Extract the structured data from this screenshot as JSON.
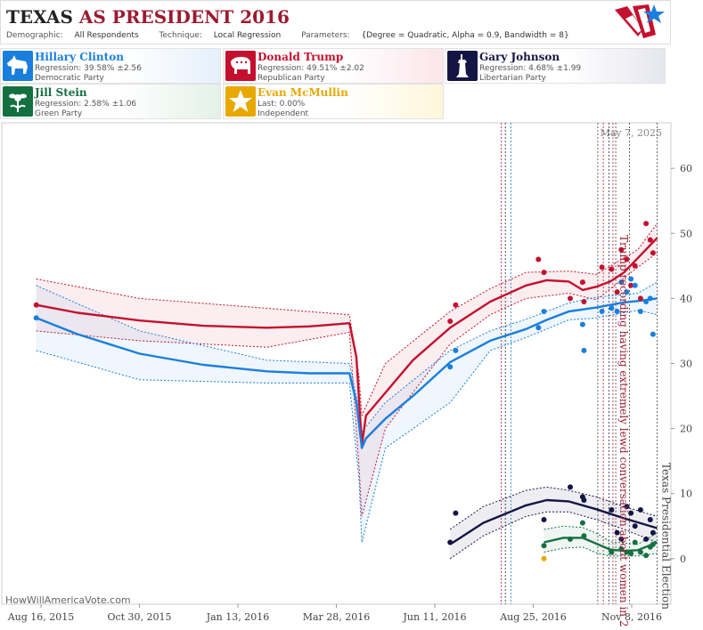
{
  "header": {
    "title": "TEXAS",
    "title_sub": "AS PRESIDENT 2016",
    "demographic_label": "Demographic:",
    "demographic_value": "All Respondents",
    "technique_label": "Technique:",
    "technique_value": "Local Regression",
    "parameters_label": "Parameters:",
    "parameters_value": "{Degree = Quadratic, Alpha = 0.9, Bandwidth = 8}"
  },
  "candidates": [
    {
      "name": "Hillary Clinton",
      "line1": "Regression: 39.58% ±2.56",
      "line2": "Democratic Party",
      "color": "#1a7fdc",
      "bg": "#e6f0fb",
      "icon": "donkey-icon"
    },
    {
      "name": "Donald Trump",
      "line1": "Regression: 49.51% ±2.02",
      "line2": "Republican Party",
      "color": "#c4102e",
      "bg": "#fbe5ea",
      "icon": "elephant-icon"
    },
    {
      "name": "Gary Johnson",
      "line1": "Regression: 4.68% ±1.99",
      "line2": "Libertarian Party",
      "color": "#151545",
      "bg": "#e6e6ef",
      "icon": "statue-of-liberty-icon"
    },
    {
      "name": "Jill Stein",
      "line1": "Regression: 2.58% ±1.06",
      "line2": "Green Party",
      "color": "#157040",
      "bg": "#e4f1e8",
      "icon": "flower-icon"
    },
    {
      "name": "Evan McMullin",
      "line1": "Last: 0.00%",
      "line2": "Independent",
      "color": "#e8a800",
      "bg": "#fff6da",
      "icon": "star-icon"
    }
  ],
  "credit": "HowWillAmericaVote.com",
  "chart_data": {
    "type": "line",
    "date_stamp": "May 7, 2025",
    "x_tick_labels": [
      "Aug 16, 2015",
      "Oct 30, 2015",
      "Jan 13, 2016",
      "Mar 28, 2016",
      "Jun 11, 2016",
      "Aug 25, 2016",
      "Nov 8, 2016"
    ],
    "y_ticks": [
      0,
      10,
      20,
      30,
      40,
      50,
      60
    ],
    "xlim": [
      "2015-07-22",
      "2016-11-18"
    ],
    "ylim": [
      -7,
      67
    ],
    "annotations": [
      {
        "text": "Trump recording having extremely lewd conversation about women in 2005",
        "date": "2016-10-07",
        "color": "#9b1b30"
      },
      {
        "text": "Texas Presidential Election",
        "date": "2016-11-08",
        "color": "#444444"
      }
    ],
    "event_lines": [
      {
        "date": "2016-07-18",
        "color": "#c4102e"
      },
      {
        "date": "2016-07-21",
        "color": "#1a1a50"
      },
      {
        "date": "2016-07-25",
        "color": "#1a7fdc"
      },
      {
        "date": "2016-09-26",
        "color": "#444444"
      },
      {
        "date": "2016-09-30",
        "color": "#c4102e"
      },
      {
        "date": "2016-10-04",
        "color": "#1a1a50"
      },
      {
        "date": "2016-10-07",
        "color": "#c4102e"
      },
      {
        "date": "2016-10-09",
        "color": "#444444"
      },
      {
        "date": "2016-10-19",
        "color": "#444444"
      },
      {
        "date": "2016-11-08",
        "color": "#444444"
      }
    ],
    "series": [
      {
        "name": "Donald Trump",
        "color": "#c4102e",
        "line": [
          [
            "2015-08-16",
            39
          ],
          [
            "2015-09-15",
            37.8
          ],
          [
            "2015-10-30",
            36.6
          ],
          [
            "2015-12-15",
            35.8
          ],
          [
            "2016-01-30",
            35.5
          ],
          [
            "2016-03-01",
            35.7
          ],
          [
            "2016-03-30",
            36.2
          ],
          [
            "2016-04-04",
            31
          ],
          [
            "2016-04-08",
            17.5
          ],
          [
            "2016-04-11",
            22
          ],
          [
            "2016-04-25",
            25.5
          ],
          [
            "2016-05-15",
            30.5
          ],
          [
            "2016-06-11",
            35.5
          ],
          [
            "2016-07-10",
            39.5
          ],
          [
            "2016-08-05",
            42
          ],
          [
            "2016-08-20",
            42.8
          ],
          [
            "2016-09-05",
            42.6
          ],
          [
            "2016-09-15",
            41.3
          ],
          [
            "2016-09-25",
            41.8
          ],
          [
            "2016-10-05",
            42.6
          ],
          [
            "2016-10-15",
            44
          ],
          [
            "2016-10-25",
            46.2
          ],
          [
            "2016-11-08",
            49.3
          ]
        ],
        "upper": [
          [
            "2015-08-16",
            43
          ],
          [
            "2015-10-30",
            40
          ],
          [
            "2016-01-30",
            38.5
          ],
          [
            "2016-03-30",
            37.5
          ],
          [
            "2016-04-06",
            28
          ],
          [
            "2016-04-08",
            22
          ],
          [
            "2016-04-25",
            30
          ],
          [
            "2016-06-11",
            38
          ],
          [
            "2016-07-10",
            41.5
          ],
          [
            "2016-08-05",
            44
          ],
          [
            "2016-09-05",
            44.2
          ],
          [
            "2016-09-25",
            43.7
          ],
          [
            "2016-10-25",
            47.5
          ],
          [
            "2016-11-08",
            51.5
          ]
        ],
        "lower": [
          [
            "2015-08-16",
            35
          ],
          [
            "2015-10-30",
            33.5
          ],
          [
            "2016-01-30",
            32.5
          ],
          [
            "2016-03-30",
            34.8
          ],
          [
            "2016-04-06",
            14
          ],
          [
            "2016-04-08",
            6.5
          ],
          [
            "2016-04-25",
            20
          ],
          [
            "2016-06-11",
            33
          ],
          [
            "2016-07-10",
            37.5
          ],
          [
            "2016-08-05",
            40
          ],
          [
            "2016-09-05",
            40.8
          ],
          [
            "2016-09-25",
            39.8
          ],
          [
            "2016-10-25",
            44.8
          ],
          [
            "2016-11-08",
            47
          ]
        ],
        "points": [
          [
            "2015-08-16",
            39
          ],
          [
            "2016-06-11",
            36.5
          ],
          [
            "2016-06-15",
            39
          ],
          [
            "2016-08-14",
            46
          ],
          [
            "2016-08-18",
            44
          ],
          [
            "2016-09-06",
            40
          ],
          [
            "2016-09-15",
            42.5
          ],
          [
            "2016-09-16",
            39.5
          ],
          [
            "2016-09-29",
            44.8
          ],
          [
            "2016-10-06",
            44.5
          ],
          [
            "2016-10-10",
            41
          ],
          [
            "2016-10-13",
            47.5
          ],
          [
            "2016-10-17",
            46
          ],
          [
            "2016-10-20",
            42
          ],
          [
            "2016-10-23",
            45
          ],
          [
            "2016-10-27",
            40
          ],
          [
            "2016-10-31",
            51.5
          ],
          [
            "2016-11-03",
            49
          ],
          [
            "2016-11-05",
            47
          ]
        ]
      },
      {
        "name": "Hillary Clinton",
        "color": "#1a7fdc",
        "line": [
          [
            "2015-08-16",
            37
          ],
          [
            "2015-09-15",
            34.5
          ],
          [
            "2015-10-30",
            31.5
          ],
          [
            "2015-12-15",
            29.8
          ],
          [
            "2016-01-30",
            28.8
          ],
          [
            "2016-03-01",
            28.5
          ],
          [
            "2016-03-30",
            28.5
          ],
          [
            "2016-04-04",
            24
          ],
          [
            "2016-04-08",
            17
          ],
          [
            "2016-04-11",
            18.5
          ],
          [
            "2016-04-25",
            21.5
          ],
          [
            "2016-05-15",
            25
          ],
          [
            "2016-06-11",
            30.2
          ],
          [
            "2016-07-10",
            33.5
          ],
          [
            "2016-08-05",
            35.3
          ],
          [
            "2016-08-20",
            36.7
          ],
          [
            "2016-09-05",
            38
          ],
          [
            "2016-09-25",
            38.6
          ],
          [
            "2016-10-15",
            39.4
          ],
          [
            "2016-10-25",
            39.6
          ],
          [
            "2016-11-08",
            40
          ]
        ],
        "upper": [
          [
            "2015-08-16",
            42
          ],
          [
            "2015-10-30",
            35
          ],
          [
            "2016-01-30",
            30.5
          ],
          [
            "2016-03-30",
            30
          ],
          [
            "2016-04-06",
            23
          ],
          [
            "2016-04-08",
            19.5
          ],
          [
            "2016-04-25",
            24
          ],
          [
            "2016-06-11",
            32
          ],
          [
            "2016-07-10",
            35
          ],
          [
            "2016-08-05",
            36.8
          ],
          [
            "2016-09-05",
            39.3
          ],
          [
            "2016-09-25",
            40.2
          ],
          [
            "2016-10-25",
            40.8
          ],
          [
            "2016-11-08",
            42.5
          ]
        ],
        "lower": [
          [
            "2015-08-16",
            32
          ],
          [
            "2015-10-30",
            27.5
          ],
          [
            "2016-01-30",
            27
          ],
          [
            "2016-03-30",
            27
          ],
          [
            "2016-04-06",
            12
          ],
          [
            "2016-04-08",
            2.5
          ],
          [
            "2016-04-25",
            17
          ],
          [
            "2016-06-11",
            24
          ],
          [
            "2016-07-10",
            32
          ],
          [
            "2016-08-05",
            34
          ],
          [
            "2016-09-05",
            36.7
          ],
          [
            "2016-09-25",
            37
          ],
          [
            "2016-10-25",
            38.2
          ],
          [
            "2016-11-08",
            37.5
          ]
        ],
        "points": [
          [
            "2015-08-16",
            37
          ],
          [
            "2016-06-11",
            29.5
          ],
          [
            "2016-06-15",
            32
          ],
          [
            "2016-08-14",
            35.5
          ],
          [
            "2016-08-18",
            38
          ],
          [
            "2016-09-15",
            36
          ],
          [
            "2016-09-16",
            32
          ],
          [
            "2016-09-29",
            38
          ],
          [
            "2016-10-06",
            38.5
          ],
          [
            "2016-10-10",
            38
          ],
          [
            "2016-10-13",
            42.5
          ],
          [
            "2016-10-17",
            41
          ],
          [
            "2016-10-20",
            43
          ],
          [
            "2016-10-23",
            42
          ],
          [
            "2016-10-27",
            38
          ],
          [
            "2016-10-31",
            39.5
          ],
          [
            "2016-11-03",
            40
          ],
          [
            "2016-11-05",
            34.5
          ]
        ]
      },
      {
        "name": "Gary Johnson",
        "color": "#151545",
        "line": [
          [
            "2016-06-11",
            2.2
          ],
          [
            "2016-07-05",
            5.5
          ],
          [
            "2016-08-05",
            8.2
          ],
          [
            "2016-08-20",
            9
          ],
          [
            "2016-09-05",
            8.8
          ],
          [
            "2016-09-25",
            7.6
          ],
          [
            "2016-10-15",
            6.2
          ],
          [
            "2016-11-08",
            4.7
          ]
        ],
        "upper": [
          [
            "2016-06-11",
            4.5
          ],
          [
            "2016-07-05",
            8
          ],
          [
            "2016-08-05",
            10.5
          ],
          [
            "2016-08-20",
            11
          ],
          [
            "2016-09-05",
            10.5
          ],
          [
            "2016-09-25",
            9.5
          ],
          [
            "2016-10-15",
            8
          ],
          [
            "2016-11-08",
            6.5
          ]
        ],
        "lower": [
          [
            "2016-06-11",
            0
          ],
          [
            "2016-07-05",
            3.5
          ],
          [
            "2016-08-05",
            6.5
          ],
          [
            "2016-08-20",
            7.2
          ],
          [
            "2016-09-05",
            7.2
          ],
          [
            "2016-09-25",
            6
          ],
          [
            "2016-10-15",
            4.5
          ],
          [
            "2016-11-08",
            2.5
          ]
        ],
        "points": [
          [
            "2016-06-11",
            2.5
          ],
          [
            "2016-06-15",
            7
          ],
          [
            "2016-08-18",
            6
          ],
          [
            "2016-09-06",
            11
          ],
          [
            "2016-09-15",
            9.5
          ],
          [
            "2016-09-16",
            9
          ],
          [
            "2016-10-06",
            7.5
          ],
          [
            "2016-10-10",
            4
          ],
          [
            "2016-10-13",
            3
          ],
          [
            "2016-10-17",
            8
          ],
          [
            "2016-10-20",
            7
          ],
          [
            "2016-10-23",
            5
          ],
          [
            "2016-10-27",
            7.5
          ],
          [
            "2016-10-31",
            3
          ],
          [
            "2016-11-03",
            6
          ],
          [
            "2016-11-05",
            4
          ]
        ]
      },
      {
        "name": "Jill Stein",
        "color": "#157040",
        "line": [
          [
            "2016-08-18",
            2.5
          ],
          [
            "2016-09-01",
            3.2
          ],
          [
            "2016-09-15",
            3.2
          ],
          [
            "2016-09-26",
            2.2
          ],
          [
            "2016-10-05",
            1.4
          ],
          [
            "2016-10-15",
            1.2
          ],
          [
            "2016-10-25",
            1.3
          ],
          [
            "2016-11-08",
            2.5
          ]
        ],
        "upper": [
          [
            "2016-08-18",
            4.5
          ],
          [
            "2016-09-01",
            5
          ],
          [
            "2016-09-15",
            4.8
          ],
          [
            "2016-09-26",
            3.8
          ],
          [
            "2016-10-05",
            2.6
          ],
          [
            "2016-10-25",
            2.2
          ],
          [
            "2016-11-08",
            4
          ]
        ],
        "lower": [
          [
            "2016-08-18",
            1
          ],
          [
            "2016-09-01",
            1.6
          ],
          [
            "2016-09-15",
            1.8
          ],
          [
            "2016-09-26",
            0.8
          ],
          [
            "2016-10-05",
            0.4
          ],
          [
            "2016-10-25",
            0.4
          ],
          [
            "2016-11-08",
            0.8
          ]
        ],
        "points": [
          [
            "2016-08-18",
            2
          ],
          [
            "2016-09-06",
            3
          ],
          [
            "2016-09-15",
            5.5
          ],
          [
            "2016-09-16",
            3.5
          ],
          [
            "2016-10-06",
            1
          ],
          [
            "2016-10-13",
            1.5
          ],
          [
            "2016-10-17",
            1
          ],
          [
            "2016-10-20",
            0.8
          ],
          [
            "2016-10-23",
            2.5
          ],
          [
            "2016-10-27",
            1
          ],
          [
            "2016-10-31",
            0.5
          ],
          [
            "2016-11-03",
            1.8
          ],
          [
            "2016-11-05",
            2.2
          ]
        ]
      },
      {
        "name": "Evan McMullin",
        "color": "#e8a800",
        "line": [],
        "upper": [],
        "lower": [],
        "points": [
          [
            "2016-08-18",
            0
          ]
        ]
      }
    ]
  }
}
